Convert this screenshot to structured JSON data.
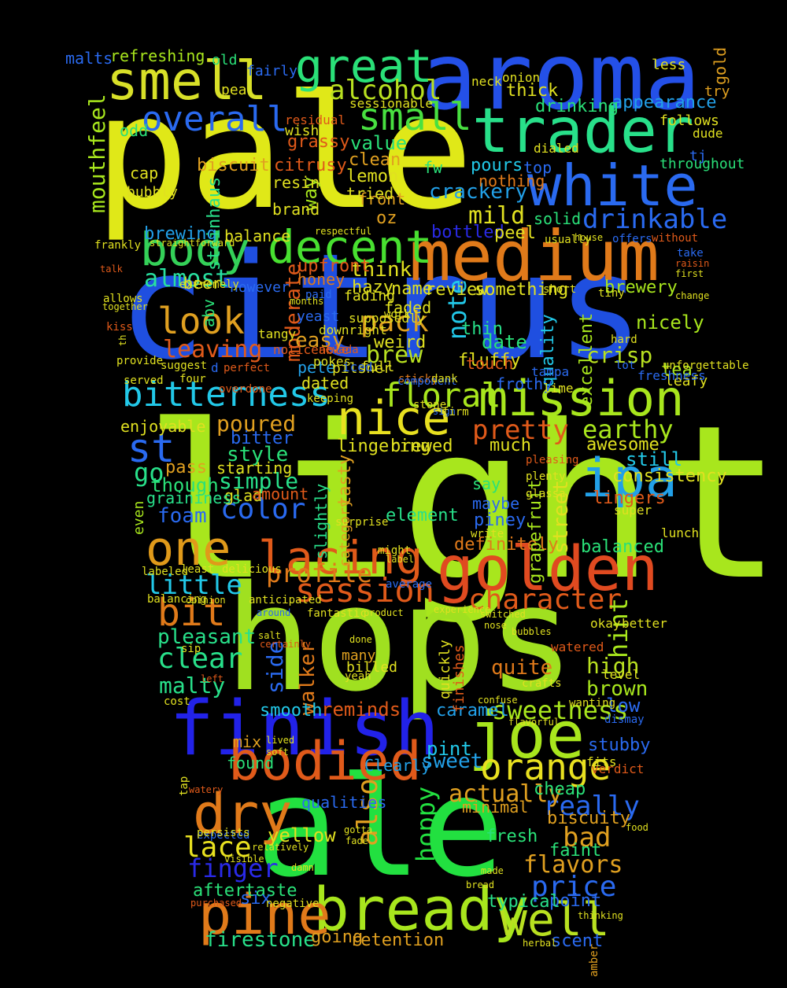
{
  "words": [
    {
      "text": "light",
      "color": "#a8e61d"
    },
    {
      "text": "citrus",
      "color": "#1f4fe0"
    },
    {
      "text": "hops",
      "color": "#a0e020"
    },
    {
      "text": "pale",
      "color": "#e0e818"
    },
    {
      "text": "ale",
      "color": "#22e040"
    },
    {
      "text": "aroma",
      "color": "#2450e8"
    },
    {
      "text": "medium",
      "color": "#e07a1a"
    },
    {
      "text": "trader",
      "color": "#28e08a"
    },
    {
      "text": "white",
      "color": "#2a6af0"
    },
    {
      "text": "smell",
      "color": "#d8e028"
    },
    {
      "text": "finish",
      "color": "#2222e8"
    },
    {
      "text": "golden",
      "color": "#e04a20"
    },
    {
      "text": "joe",
      "color": "#a8e61d"
    },
    {
      "text": "bodied",
      "color": "#e05a1a"
    },
    {
      "text": "mission",
      "color": "#a8e61d"
    },
    {
      "text": "nice",
      "color": "#e8e020"
    },
    {
      "text": "bitterness",
      "color": "#22c8e8"
    },
    {
      "text": "body",
      "color": "#34d058"
    },
    {
      "text": "decent",
      "color": "#48e030"
    },
    {
      "text": "great",
      "color": "#2ae078"
    },
    {
      "text": "ipa",
      "color": "#22a0e8"
    },
    {
      "text": "one",
      "color": "#e09a1a"
    },
    {
      "text": "lacing",
      "color": "#e05a1a"
    },
    {
      "text": "dry",
      "color": "#e07a1a"
    },
    {
      "text": "bready",
      "color": "#a8e61d"
    },
    {
      "text": "well",
      "color": "#b8e020"
    },
    {
      "text": "pine",
      "color": "#e07a1a"
    },
    {
      "text": "orange",
      "color": "#e8e020"
    },
    {
      "text": "session",
      "color": "#e05a1a"
    },
    {
      "text": "look",
      "color": "#e0a020"
    },
    {
      "text": "overall",
      "color": "#2a6af0"
    },
    {
      "text": "small",
      "color": "#48e040"
    },
    {
      "text": "alcohol",
      "color": "#b8e020"
    },
    {
      "text": "drinkable",
      "color": "#2a6af0"
    },
    {
      "text": "floral",
      "color": "#a8e61d"
    },
    {
      "text": "character",
      "color": "#e05a1a"
    },
    {
      "text": "bit",
      "color": "#e07a1a"
    },
    {
      "text": "pretty",
      "color": "#e05a1a"
    },
    {
      "text": "earthy",
      "color": "#a8e61d"
    },
    {
      "text": "st",
      "color": "#2a6af0"
    },
    {
      "text": "go",
      "color": "#28e08a"
    },
    {
      "text": "pack",
      "color": "#e0a020"
    },
    {
      "text": "mouthfeel",
      "color": "#a8e61d"
    },
    {
      "text": "almost",
      "color": "#28e0a0"
    },
    {
      "text": "little",
      "color": "#22c8e8"
    },
    {
      "text": "profile",
      "color": "#e07a1a"
    },
    {
      "text": "clear",
      "color": "#28e08a"
    },
    {
      "text": "sweetness",
      "color": "#a8e61d"
    },
    {
      "text": "hoppy",
      "color": "#22e040"
    },
    {
      "text": "price",
      "color": "#2a6af0"
    },
    {
      "text": "flavors",
      "color": "#e0a020"
    },
    {
      "text": "really",
      "color": "#2a6af0"
    },
    {
      "text": "lace",
      "color": "#e8e020"
    },
    {
      "text": "finger",
      "color": "#2a2ae8"
    },
    {
      "text": "firestone",
      "color": "#28e08a"
    },
    {
      "text": "sweet",
      "color": "#22a0e8"
    },
    {
      "text": "also",
      "color": "#e0a020"
    },
    {
      "text": "actually",
      "color": "#e0a020"
    },
    {
      "text": "bad",
      "color": "#e0a020"
    },
    {
      "text": "pleasant",
      "color": "#28e08a"
    },
    {
      "text": "malty",
      "color": "#28e08a"
    },
    {
      "text": "brown",
      "color": "#a8e61d"
    },
    {
      "text": "high",
      "color": "#b8e020"
    },
    {
      "text": "leaving",
      "color": "#e05a1a"
    },
    {
      "text": "color",
      "color": "#2a6af0"
    },
    {
      "text": "foam",
      "color": "#2a6af0"
    },
    {
      "text": "simple",
      "color": "#28e08a"
    },
    {
      "text": "crisp",
      "color": "#b8e020"
    },
    {
      "text": "mild",
      "color": "#e0e020"
    },
    {
      "text": "brew",
      "color": "#b8e020"
    },
    {
      "text": "note",
      "color": "#22c8e8"
    },
    {
      "text": "value",
      "color": "#2ae078"
    },
    {
      "text": "crackery",
      "color": "#22a0e8"
    },
    {
      "text": "grassy",
      "color": "#e05a1a"
    },
    {
      "text": "biscuit",
      "color": "#e0a020"
    },
    {
      "text": "poured",
      "color": "#e0a020"
    },
    {
      "text": "think",
      "color": "#e0e020"
    },
    {
      "text": "moderate",
      "color": "#e05a1a"
    },
    {
      "text": "style",
      "color": "#2ae078"
    },
    {
      "text": "though",
      "color": "#2ae078"
    },
    {
      "text": "pass",
      "color": "#e0a020"
    },
    {
      "text": "balanced",
      "color": "#2ae078"
    },
    {
      "text": "definitely",
      "color": "#e07a1a"
    },
    {
      "text": "element",
      "color": "#28e08a"
    },
    {
      "text": "grapefruit",
      "color": "#a8e61d"
    },
    {
      "text": "street",
      "color": "#e0e020"
    },
    {
      "text": "hint",
      "color": "#a8e61d"
    },
    {
      "text": "quite",
      "color": "#e07a1a"
    },
    {
      "text": "side",
      "color": "#2a6af0"
    },
    {
      "text": "walker",
      "color": "#e07a1a"
    },
    {
      "text": "reminds",
      "color": "#e05a1a"
    },
    {
      "text": "smooth",
      "color": "#22c8e8"
    },
    {
      "text": "pint",
      "color": "#22c8e8"
    },
    {
      "text": "yellow",
      "color": "#e0e020"
    },
    {
      "text": "aftertaste",
      "color": "#2ae078"
    },
    {
      "text": "going",
      "color": "#e0a020"
    },
    {
      "text": "retention",
      "color": "#e0a020"
    },
    {
      "text": "scent",
      "color": "#2a6af0"
    },
    {
      "text": "point",
      "color": "#2a6af0"
    },
    {
      "text": "typical",
      "color": "#28e08a"
    },
    {
      "text": "fresh",
      "color": "#2ae078"
    },
    {
      "text": "faint",
      "color": "#2ae078"
    },
    {
      "text": "biscuity",
      "color": "#e0a020"
    },
    {
      "text": "cheap",
      "color": "#2ae078"
    },
    {
      "text": "stubby",
      "color": "#2a6af0"
    },
    {
      "text": "low",
      "color": "#2a6af0"
    },
    {
      "text": "caramel",
      "color": "#22a0e8"
    },
    {
      "text": "mix",
      "color": "#e0a020"
    },
    {
      "text": "found",
      "color": "#2ae078"
    },
    {
      "text": "Clearly",
      "color": "#22a0e8"
    },
    {
      "text": "qualities",
      "color": "#2a6af0"
    },
    {
      "text": "minimal",
      "color": "#e0a020"
    },
    {
      "text": "six",
      "color": "#2a6af0"
    },
    {
      "text": "refreshing",
      "color": "#a8e61d"
    },
    {
      "text": "malts",
      "color": "#2a6af0"
    },
    {
      "text": "appearance",
      "color": "#22a0e8"
    },
    {
      "text": "drinking",
      "color": "#2ae078"
    },
    {
      "text": "citrusy",
      "color": "#e05a1a"
    },
    {
      "text": "clean",
      "color": "#e0a020"
    },
    {
      "text": "lemon",
      "color": "#e0e020"
    },
    {
      "text": "front",
      "color": "#e0a020"
    },
    {
      "text": "pours",
      "color": "#22c8e8"
    },
    {
      "text": "nothing",
      "color": "#e07a1a"
    },
    {
      "text": "solid",
      "color": "#2ae078"
    },
    {
      "text": "bottled",
      "color": "#2a2ae8"
    },
    {
      "text": "peel",
      "color": "#e0e020"
    },
    {
      "text": "brewing",
      "color": "#22a0e8"
    },
    {
      "text": "balance",
      "color": "#e0e020"
    },
    {
      "text": "upfront",
      "color": "#e05a1a"
    },
    {
      "text": "hazy",
      "color": "#e0e020"
    },
    {
      "text": "name",
      "color": "#e0e020"
    },
    {
      "text": "review",
      "color": "#e0e020"
    },
    {
      "text": "something",
      "color": "#e0e020"
    },
    {
      "text": "brewery",
      "color": "#a8e61d"
    },
    {
      "text": "nicely",
      "color": "#a8e61d"
    },
    {
      "text": "tea",
      "color": "#a8e61d"
    },
    {
      "text": "easy",
      "color": "#e0a020"
    },
    {
      "text": "thin",
      "color": "#28e08a"
    },
    {
      "text": "date",
      "color": "#2ae078"
    },
    {
      "text": "quality",
      "color": "#22c8e8"
    },
    {
      "text": "excellent",
      "color": "#a8e61d"
    },
    {
      "text": "weird",
      "color": "#e0e020"
    },
    {
      "text": "pete",
      "color": "#22a0e8"
    },
    {
      "text": "dated",
      "color": "#e0e020"
    },
    {
      "text": "pilsner",
      "color": "#e0e020"
    },
    {
      "text": "fluffy",
      "color": "#e0e020"
    },
    {
      "text": "frothy",
      "color": "#2a6af0"
    },
    {
      "text": "enjoyable",
      "color": "#e0e020"
    },
    {
      "text": "bitter",
      "color": "#2a6af0"
    },
    {
      "text": "tasty",
      "color": "#e0a020"
    },
    {
      "text": "lingering",
      "color": "#e0e020"
    },
    {
      "text": "brewed",
      "color": "#e0e020"
    },
    {
      "text": "much",
      "color": "#e0e020"
    },
    {
      "text": "awesome",
      "color": "#e0e020"
    },
    {
      "text": "still",
      "color": "#22c8e8"
    },
    {
      "text": "consistency",
      "color": "#e0e020"
    },
    {
      "text": "slightly",
      "color": "#28e08a"
    },
    {
      "text": "category",
      "color": "#e0a020"
    },
    {
      "text": "say",
      "color": "#2ae078"
    },
    {
      "text": "maybe",
      "color": "#2a6af0"
    },
    {
      "text": "piney",
      "color": "#2a6af0"
    },
    {
      "text": "lingers",
      "color": "#e05a1a"
    },
    {
      "text": "starting",
      "color": "#e0e020"
    },
    {
      "text": "glad",
      "color": "#e0e020"
    },
    {
      "text": "amount",
      "color": "#e05a1a"
    },
    {
      "text": "graininess",
      "color": "#28e08a"
    },
    {
      "text": "even",
      "color": "#a8e61d"
    },
    {
      "text": "honey",
      "color": "#e07a1a"
    },
    {
      "text": "way",
      "color": "#a8e61d"
    },
    {
      "text": "steinhaus",
      "color": "#28e08a"
    },
    {
      "text": "resin",
      "color": "#e0e020"
    },
    {
      "text": "brand",
      "color": "#e0e020"
    },
    {
      "text": "tried",
      "color": "#e0e020"
    },
    {
      "text": "oz",
      "color": "#e0a020"
    },
    {
      "text": "cap",
      "color": "#e0e020"
    },
    {
      "text": "odd",
      "color": "#2ae078"
    },
    {
      "text": "bubbly",
      "color": "#e0e020"
    },
    {
      "text": "abv",
      "color": "#2ae078"
    },
    {
      "text": "yeast",
      "color": "#2a6af0"
    },
    {
      "text": "however",
      "color": "#2a6af0"
    },
    {
      "text": "beer",
      "color": "#e0e020"
    },
    {
      "text": "less",
      "color": "#e0e020"
    },
    {
      "text": "gold",
      "color": "#e0a020"
    },
    {
      "text": "try",
      "color": "#e0a020"
    },
    {
      "text": "dude",
      "color": "#e0e020"
    },
    {
      "text": "follows",
      "color": "#e0e020"
    },
    {
      "text": "throughout",
      "color": "#2ae078"
    },
    {
      "text": "tj",
      "color": "#2a6af0"
    },
    {
      "text": "thick",
      "color": "#e0e020"
    },
    {
      "text": "onion",
      "color": "#e0e020"
    },
    {
      "text": "top",
      "color": "#2a6af0"
    },
    {
      "text": "dialed",
      "color": "#e0e020"
    },
    {
      "text": "fw",
      "color": "#2ae078"
    },
    {
      "text": "old",
      "color": "#2ae078"
    },
    {
      "text": "pea",
      "color": "#e0e020"
    },
    {
      "text": "fairly",
      "color": "#2a6af0"
    },
    {
      "text": "wish",
      "color": "#e0e020"
    },
    {
      "text": "residual",
      "color": "#e05a1a"
    },
    {
      "text": "sessionable",
      "color": "#e0e020"
    },
    {
      "text": "neck",
      "color": "#e0e020"
    },
    {
      "text": "fading",
      "color": "#e0e020"
    },
    {
      "text": "faded",
      "color": "#e0e020"
    },
    {
      "text": "d",
      "color": "#2a6af0"
    },
    {
      "text": "overdone",
      "color": "#e05a1a"
    },
    {
      "text": "tangy",
      "color": "#e0e020"
    },
    {
      "text": "work",
      "color": "#e0e020"
    },
    {
      "text": "sticky",
      "color": "#e07a1a"
    },
    {
      "text": "full",
      "color": "#e0e020"
    },
    {
      "text": "component",
      "color": "#2a6af0"
    },
    {
      "text": "keeping",
      "color": "#e0e020"
    },
    {
      "text": "dank",
      "color": "#e0e020"
    },
    {
      "text": "pleasing",
      "color": "#e05a1a"
    },
    {
      "text": "plenty",
      "color": "#e0e020"
    },
    {
      "text": "glassa",
      "color": "#e0e020"
    },
    {
      "text": "super",
      "color": "#e0e020"
    },
    {
      "text": "hard",
      "color": "#e0e020"
    },
    {
      "text": "lot",
      "color": "#2a6af0"
    },
    {
      "text": "leafy",
      "color": "#e0e020"
    },
    {
      "text": "unforgettable",
      "color": "#e0e020"
    },
    {
      "text": "freshness",
      "color": "#2a6af0"
    },
    {
      "text": "lime",
      "color": "#e0e020"
    },
    {
      "text": "okay",
      "color": "#e0e020"
    },
    {
      "text": "better",
      "color": "#e0e020"
    },
    {
      "text": "watered",
      "color": "#e05a1a"
    },
    {
      "text": "level",
      "color": "#e0e020"
    },
    {
      "text": "dismay",
      "color": "#2a6af0"
    },
    {
      "text": "verdict",
      "color": "#e05a1a"
    },
    {
      "text": "fits",
      "color": "#e0e020"
    },
    {
      "text": "lunch",
      "color": "#e0e020"
    },
    {
      "text": "tampa",
      "color": "#2a6af0"
    },
    {
      "text": "touch",
      "color": "#e05a1a"
    },
    {
      "text": "supposedly",
      "color": "#e0e020"
    },
    {
      "text": "downright",
      "color": "#e0e020"
    },
    {
      "text": "nevada",
      "color": "#e05a1a"
    },
    {
      "text": "pokes",
      "color": "#e0e020"
    },
    {
      "text": "noticeable",
      "color": "#e05a1a"
    },
    {
      "text": "iced",
      "color": "#2a6af0"
    },
    {
      "text": "stone",
      "color": "#e0e020"
    },
    {
      "text": "sign",
      "color": "#2a6af0"
    },
    {
      "text": "firm",
      "color": "#e0e020"
    },
    {
      "text": "served",
      "color": "#e0e020"
    },
    {
      "text": "four",
      "color": "#e0e020"
    },
    {
      "text": "kiss",
      "color": "#e05a1a"
    },
    {
      "text": "th",
      "color": "#e0e020"
    },
    {
      "text": "provide",
      "color": "#e0e020"
    },
    {
      "text": "suggest",
      "color": "#e0e020"
    },
    {
      "text": "perfect",
      "color": "#e05a1a"
    },
    {
      "text": "together",
      "color": "#e0e020"
    },
    {
      "text": "allows",
      "color": "#e0e020"
    },
    {
      "text": "extremely",
      "color": "#e0e020"
    },
    {
      "text": "talk",
      "color": "#e05a1a"
    },
    {
      "text": "frankly",
      "color": "#e0e020"
    },
    {
      "text": "straightforward",
      "color": "#e0e020"
    },
    {
      "text": "respectful",
      "color": "#e0e020"
    },
    {
      "text": "without",
      "color": "#e05a1a"
    },
    {
      "text": "offers",
      "color": "#2a6af0"
    },
    {
      "text": "usually",
      "color": "#e0e020"
    },
    {
      "text": "house",
      "color": "#e0e020"
    },
    {
      "text": "take",
      "color": "#2a6af0"
    },
    {
      "text": "raisin",
      "color": "#e05a1a"
    },
    {
      "text": "first",
      "color": "#e0e020"
    },
    {
      "text": "change",
      "color": "#e0e020"
    },
    {
      "text": "tiny",
      "color": "#e0e020"
    },
    {
      "text": "short",
      "color": "#e0e020"
    },
    {
      "text": "paid",
      "color": "#2a6af0"
    },
    {
      "text": "months",
      "color": "#e0e020"
    },
    {
      "text": "delicious",
      "color": "#e0e020"
    },
    {
      "text": "labeled",
      "color": "#e0e020"
    },
    {
      "text": "least",
      "color": "#e0e020"
    },
    {
      "text": "balancing",
      "color": "#e0e020"
    },
    {
      "text": "opinion",
      "color": "#e0e020"
    },
    {
      "text": "anticipated",
      "color": "#e0e020"
    },
    {
      "text": "around",
      "color": "#2a6af0"
    },
    {
      "text": "fantastic",
      "color": "#e0e020"
    },
    {
      "text": "product",
      "color": "#e0e020"
    },
    {
      "text": "experience",
      "color": "#e0e020"
    },
    {
      "text": "switched",
      "color": "#e0e020"
    },
    {
      "text": "average",
      "color": "#2a6af0"
    },
    {
      "text": "might",
      "color": "#e0e020"
    },
    {
      "text": "label",
      "color": "#e0e020"
    },
    {
      "text": "surprise",
      "color": "#e0e020"
    },
    {
      "text": "write",
      "color": "#e0e020"
    },
    {
      "text": "salt",
      "color": "#e0e020"
    },
    {
      "text": "certainly",
      "color": "#e05a1a"
    },
    {
      "text": "sip",
      "color": "#e0e020"
    },
    {
      "text": "cost",
      "color": "#e0e020"
    },
    {
      "text": "left",
      "color": "#e05a1a"
    },
    {
      "text": "many",
      "color": "#e0a020"
    },
    {
      "text": "billed",
      "color": "#e0e020"
    },
    {
      "text": "yeah",
      "color": "#e0e020"
    },
    {
      "text": "done",
      "color": "#e0e020"
    },
    {
      "text": "quickly",
      "color": "#e0e020"
    },
    {
      "text": "finishes",
      "color": "#e05a1a"
    },
    {
      "text": "crafts",
      "color": "#e0e020"
    },
    {
      "text": "confuse",
      "color": "#e0e020"
    },
    {
      "text": "flavorful",
      "color": "#e0e020"
    },
    {
      "text": "wanting",
      "color": "#e0e020"
    },
    {
      "text": "bubbles",
      "color": "#e0e020"
    },
    {
      "text": "nose",
      "color": "#e0e020"
    },
    {
      "text": "tap",
      "color": "#e0e020"
    },
    {
      "text": "soft",
      "color": "#e0e020"
    },
    {
      "text": "lived",
      "color": "#e0e020"
    },
    {
      "text": "watery",
      "color": "#e05a1a"
    },
    {
      "text": "expected",
      "color": "#2a6af0"
    },
    {
      "text": "persists",
      "color": "#e0e020"
    },
    {
      "text": "relatively",
      "color": "#e0e020"
    },
    {
      "text": "visible",
      "color": "#e0e020"
    },
    {
      "text": "damn",
      "color": "#e0e020"
    },
    {
      "text": "fade",
      "color": "#e0e020"
    },
    {
      "text": "gotta",
      "color": "#e0e020"
    },
    {
      "text": "bread",
      "color": "#e0e020"
    },
    {
      "text": "made",
      "color": "#e0e020"
    },
    {
      "text": "herbal",
      "color": "#e0e020"
    },
    {
      "text": "amber",
      "color": "#e0a020"
    },
    {
      "text": "negative",
      "color": "#e0e020"
    },
    {
      "text": "purchased",
      "color": "#e05a1a"
    },
    {
      "text": "thinking",
      "color": "#e0e020"
    },
    {
      "text": "food",
      "color": "#e0e020"
    }
  ]
}
